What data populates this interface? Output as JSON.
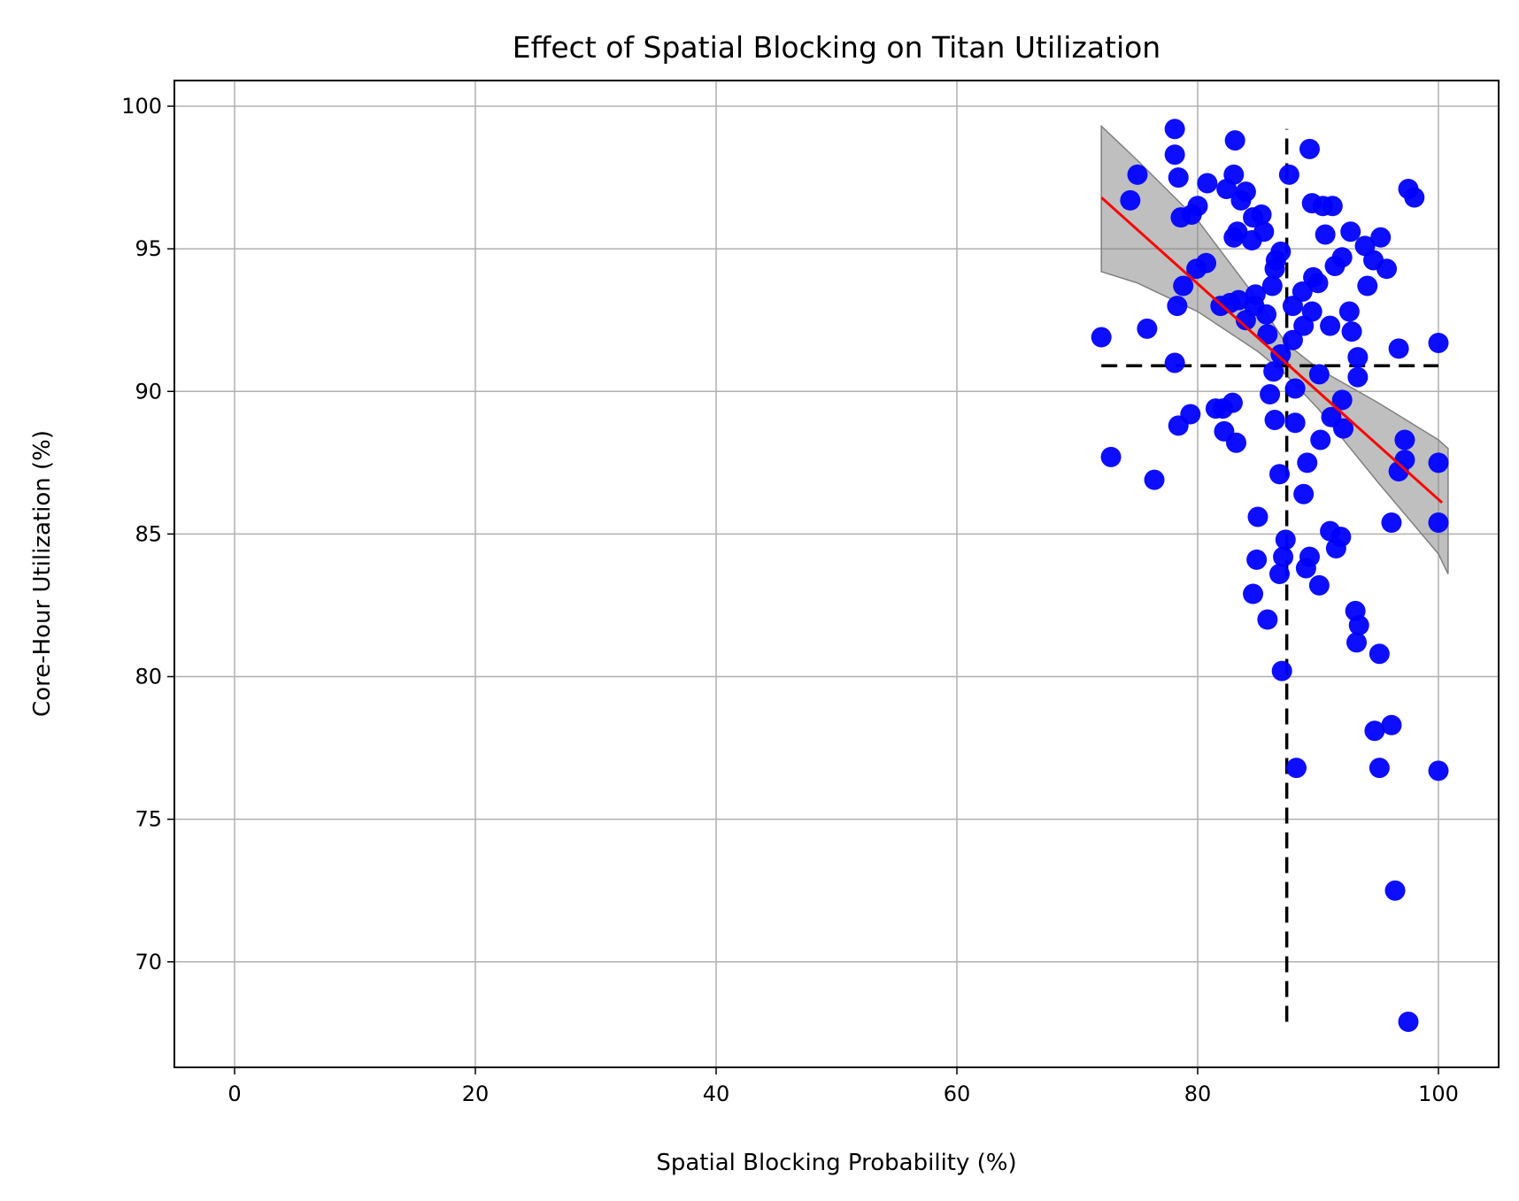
{
  "chart_data": {
    "type": "scatter",
    "title": "Effect of Spatial Blocking on Titan Utilization",
    "xlabel": "Spatial Blocking Probability (%)",
    "ylabel": "Core-Hour Utilization (%)",
    "xlim": [
      -5,
      105
    ],
    "ylim": [
      66.3,
      100.9
    ],
    "x_ticks": [
      0,
      20,
      40,
      60,
      80,
      100
    ],
    "y_ticks": [
      70,
      75,
      80,
      85,
      90,
      95,
      100
    ],
    "grid": true,
    "colors": {
      "points": "#0000ff",
      "fit_line": "#ff0000",
      "confidence_band": "#808080",
      "reference_lines": "#000000",
      "grid": "#b0b0b0"
    },
    "points": [
      [
        72.0,
        91.9
      ],
      [
        72.8,
        87.7
      ],
      [
        74.4,
        96.7
      ],
      [
        75.0,
        97.6
      ],
      [
        75.8,
        92.2
      ],
      [
        76.4,
        86.9
      ],
      [
        78.1,
        99.2
      ],
      [
        78.1,
        98.3
      ],
      [
        78.4,
        97.5
      ],
      [
        78.6,
        96.1
      ],
      [
        78.8,
        93.7
      ],
      [
        78.3,
        93.0
      ],
      [
        78.1,
        91.0
      ],
      [
        78.4,
        88.8
      ],
      [
        79.4,
        89.2
      ],
      [
        79.5,
        96.2
      ],
      [
        80.0,
        96.5
      ],
      [
        79.9,
        94.3
      ],
      [
        80.7,
        94.5
      ],
      [
        80.8,
        97.3
      ],
      [
        81.5,
        89.4
      ],
      [
        81.9,
        93.0
      ],
      [
        82.1,
        89.4
      ],
      [
        82.2,
        88.6
      ],
      [
        82.4,
        97.1
      ],
      [
        82.7,
        93.1
      ],
      [
        82.9,
        89.6
      ],
      [
        83.0,
        97.6
      ],
      [
        83.1,
        98.8
      ],
      [
        83.0,
        95.4
      ],
      [
        83.3,
        95.6
      ],
      [
        83.6,
        96.7
      ],
      [
        83.2,
        88.2
      ],
      [
        83.4,
        93.2
      ],
      [
        84.0,
        97.0
      ],
      [
        84.0,
        92.5
      ],
      [
        84.6,
        96.1
      ],
      [
        84.5,
        95.3
      ],
      [
        84.7,
        93.0
      ],
      [
        84.8,
        93.4
      ],
      [
        84.6,
        82.9
      ],
      [
        84.9,
        84.1
      ],
      [
        85.0,
        85.6
      ],
      [
        85.3,
        96.2
      ],
      [
        85.5,
        95.6
      ],
      [
        85.7,
        92.7
      ],
      [
        85.8,
        92.0
      ],
      [
        85.8,
        82.0
      ],
      [
        86.0,
        89.9
      ],
      [
        86.2,
        93.7
      ],
      [
        86.4,
        94.3
      ],
      [
        86.5,
        94.6
      ],
      [
        86.3,
        90.7
      ],
      [
        86.4,
        89.0
      ],
      [
        86.9,
        94.9
      ],
      [
        86.9,
        91.3
      ],
      [
        86.8,
        87.1
      ],
      [
        86.8,
        83.6
      ],
      [
        87.0,
        80.2
      ],
      [
        87.1,
        84.2
      ],
      [
        87.3,
        84.8
      ],
      [
        87.6,
        97.6
      ],
      [
        87.9,
        93.0
      ],
      [
        87.9,
        91.8
      ],
      [
        88.1,
        90.1
      ],
      [
        88.1,
        88.9
      ],
      [
        88.2,
        76.8
      ],
      [
        88.7,
        93.5
      ],
      [
        88.8,
        92.3
      ],
      [
        88.8,
        86.4
      ],
      [
        89.1,
        87.5
      ],
      [
        89.3,
        98.5
      ],
      [
        89.5,
        96.6
      ],
      [
        89.6,
        94.0
      ],
      [
        89.5,
        92.8
      ],
      [
        89.3,
        84.2
      ],
      [
        89.0,
        83.8
      ],
      [
        90.0,
        93.8
      ],
      [
        90.1,
        90.6
      ],
      [
        90.2,
        88.3
      ],
      [
        90.1,
        83.2
      ],
      [
        90.4,
        96.5
      ],
      [
        90.6,
        95.5
      ],
      [
        91.2,
        96.5
      ],
      [
        91.0,
        92.3
      ],
      [
        91.0,
        85.1
      ],
      [
        91.4,
        94.4
      ],
      [
        91.1,
        89.1
      ],
      [
        91.5,
        84.5
      ],
      [
        92.0,
        94.7
      ],
      [
        91.9,
        84.9
      ],
      [
        92.0,
        89.7
      ],
      [
        92.1,
        88.7
      ],
      [
        92.6,
        92.8
      ],
      [
        92.7,
        95.6
      ],
      [
        92.8,
        92.1
      ],
      [
        93.3,
        91.2
      ],
      [
        93.3,
        90.5
      ],
      [
        93.1,
        82.3
      ],
      [
        93.4,
        81.8
      ],
      [
        93.2,
        81.2
      ],
      [
        93.9,
        95.1
      ],
      [
        94.1,
        93.7
      ],
      [
        94.6,
        94.6
      ],
      [
        94.7,
        78.1
      ],
      [
        95.2,
        95.4
      ],
      [
        95.1,
        80.8
      ],
      [
        95.1,
        76.8
      ],
      [
        95.7,
        94.3
      ],
      [
        96.1,
        85.4
      ],
      [
        96.1,
        78.3
      ],
      [
        96.4,
        72.5
      ],
      [
        96.7,
        91.5
      ],
      [
        96.7,
        87.2
      ],
      [
        97.2,
        88.3
      ],
      [
        97.2,
        87.6
      ],
      [
        97.5,
        97.1
      ],
      [
        97.5,
        67.9
      ],
      [
        98.0,
        96.8
      ],
      [
        100.0,
        91.7
      ],
      [
        100.0,
        87.5
      ],
      [
        100.0,
        85.4
      ],
      [
        100.0,
        76.7
      ]
    ],
    "fit_line": {
      "x": [
        72.0,
        100.3
      ],
      "y": [
        96.8,
        86.1
      ]
    },
    "confidence_band": {
      "x": [
        72.0,
        75.0,
        80.0,
        85.0,
        87.3,
        90.0,
        95.0,
        100.0,
        100.8
      ],
      "upper": [
        99.3,
        98.1,
        96.0,
        93.2,
        91.7,
        90.8,
        89.6,
        88.3,
        88.0
      ],
      "lower": [
        94.2,
        93.8,
        92.8,
        91.4,
        90.6,
        89.4,
        86.8,
        84.3,
        83.6
      ]
    },
    "reference_lines": {
      "vertical": {
        "x": 87.4,
        "y_range": [
          67.9,
          99.2
        ]
      },
      "horizontal": {
        "y": 90.9,
        "x_range": [
          72.0,
          100.0
        ]
      }
    }
  }
}
